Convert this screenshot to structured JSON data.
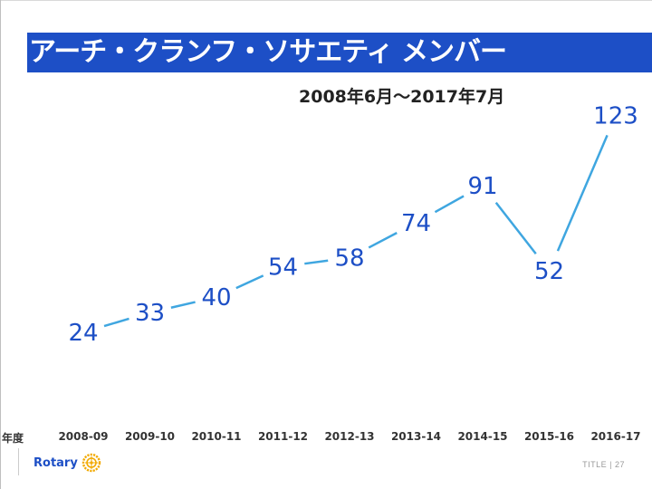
{
  "slide": {
    "title": "アーチ・クランフ・ソサエティ メンバー",
    "subtitle": "2008年6月～2017年7月",
    "footer_note": "TITLE | 27"
  },
  "logo": {
    "text": "Rotary",
    "icon": "rotary-wheel-icon",
    "color": "#f2a900"
  },
  "colors": {
    "accent": "#1d4fc6",
    "line": "#3fa6e0",
    "title_bg": "#1d4fc6"
  },
  "chart_data": {
    "type": "line",
    "title": "アーチ・クランフ・ソサエティ メンバー",
    "subtitle": "2008年6月～2017年7月",
    "xlabel": "年度",
    "ylabel": "",
    "categories": [
      "2008-09",
      "2009-10",
      "2010-11",
      "2011-12",
      "2012-13",
      "2013-14",
      "2014-15",
      "2015-16",
      "2016-17"
    ],
    "series": [
      {
        "name": "メンバー",
        "values": [
          24,
          33,
          40,
          54,
          58,
          74,
          91,
          52,
          123
        ]
      }
    ],
    "ylim": [
      0,
      130
    ],
    "grid": false,
    "legend": "none"
  }
}
